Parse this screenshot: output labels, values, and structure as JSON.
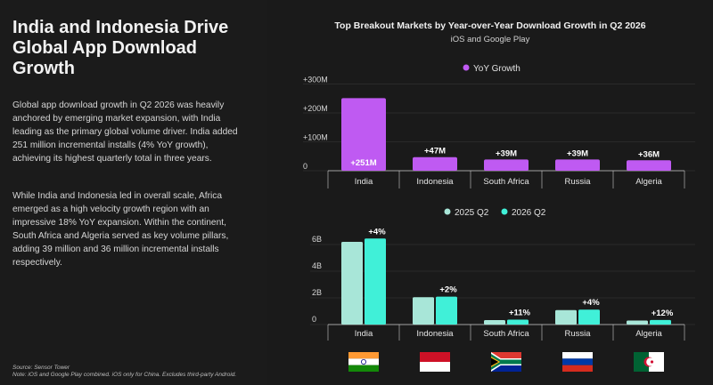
{
  "left": {
    "title": "India and Indonesia Drive Global App Download Growth",
    "paragraph1": "Global app download growth in Q2 2026 was heavily anchored by emerging market expansion, with India leading as the primary global volume driver. India added 251 million incremental installs (4% YoY growth), achieving its highest quarterly total in three years.",
    "paragraph2": "While India and Indonesia led in overall scale, Africa emerged as a high velocity growth region with an impressive 18% YoY expansion. Within the continent, South Africa and Algeria served as key volume pillars, adding 39 million and 36 million incremental installs respectively.",
    "source": "Source: Sensor Tower",
    "note": "Note: iOS and Google Play combined. iOS only for China. Excludes third-party Android."
  },
  "colors": {
    "yoy": "#bf5af2",
    "q2_2025": "#a8e6d8",
    "q2_2026": "#40f0d8",
    "axis": "#cccccc",
    "grid": "#3a3a3a"
  },
  "chart_data": [
    {
      "type": "bar",
      "title": "Top Breakout Markets by Year-over-Year Download Growth in Q2 2026",
      "subtitle": "iOS and Google Play",
      "categories": [
        "India",
        "Indonesia",
        "South Africa",
        "Russia",
        "Algeria"
      ],
      "series": [
        {
          "name": "YoY Growth",
          "values": [
            251,
            47,
            39,
            39,
            36
          ],
          "labels": [
            "+251M",
            "+47M",
            "+39M",
            "+39M",
            "+36M"
          ]
        }
      ],
      "yticks": [
        0,
        100,
        200,
        300
      ],
      "ytick_labels": [
        "0",
        "+100M",
        "+200M",
        "+300M"
      ],
      "ylim": [
        0,
        300
      ],
      "legend": "top-center"
    },
    {
      "type": "bar",
      "categories": [
        "India",
        "Indonesia",
        "South Africa",
        "Russia",
        "Algeria"
      ],
      "series": [
        {
          "name": "2025 Q2",
          "values": [
            6.2,
            2.05,
            0.33,
            1.08,
            0.3
          ]
        },
        {
          "name": "2026 Q2",
          "values": [
            6.45,
            2.09,
            0.37,
            1.12,
            0.34
          ]
        }
      ],
      "growth_labels": [
        "+4%",
        "+2%",
        "+11%",
        "+4%",
        "+12%"
      ],
      "yticks": [
        0,
        2,
        4,
        6
      ],
      "ytick_labels": [
        "0",
        "2B",
        "4B",
        "6B"
      ],
      "ylim": [
        0,
        6.6
      ],
      "legend": "top-center"
    }
  ],
  "flags": [
    "india-flag-icon",
    "indonesia-flag-icon",
    "south-africa-flag-icon",
    "russia-flag-icon",
    "algeria-flag-icon"
  ]
}
